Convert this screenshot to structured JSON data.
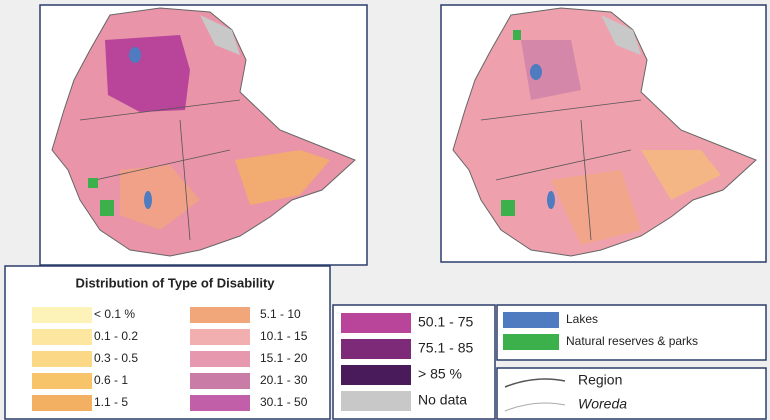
{
  "legend": {
    "title": "Distribution of Type of Disability",
    "classes": [
      {
        "label": "< 0.1 %",
        "color": "#fdf2b8"
      },
      {
        "label": "0.1 - 0.2",
        "color": "#fde7a0"
      },
      {
        "label": "0.3 - 0.5",
        "color": "#fbd885"
      },
      {
        "label": "0.6 - 1",
        "color": "#f8c46a"
      },
      {
        "label": "1.1 - 5",
        "color": "#f4b062"
      },
      {
        "label": "5.1 - 10",
        "color": "#f2a77a"
      },
      {
        "label": "10.1 - 15",
        "color": "#f1afb0"
      },
      {
        "label": "15.1 - 20",
        "color": "#e598ae"
      },
      {
        "label": "20.1 - 30",
        "color": "#c97ca6"
      },
      {
        "label": "30.1 - 50",
        "color": "#c160a8"
      },
      {
        "label": "50.1 - 75",
        "color": "#b8459a"
      },
      {
        "label": "75.1 - 85",
        "color": "#7d2a78"
      },
      {
        "label": "> 85 %",
        "color": "#4a1b5a"
      },
      {
        "label": "No data",
        "color": "#c8c8c8"
      }
    ],
    "features": [
      {
        "label": "Lakes",
        "color": "#4f7bc0"
      },
      {
        "label": "Natural reserves & parks",
        "color": "#3cb04a"
      }
    ],
    "boundaries": [
      {
        "label": "Region",
        "color": "#555555"
      },
      {
        "label": "Woreda",
        "color": "#aaaaaa"
      }
    ]
  }
}
